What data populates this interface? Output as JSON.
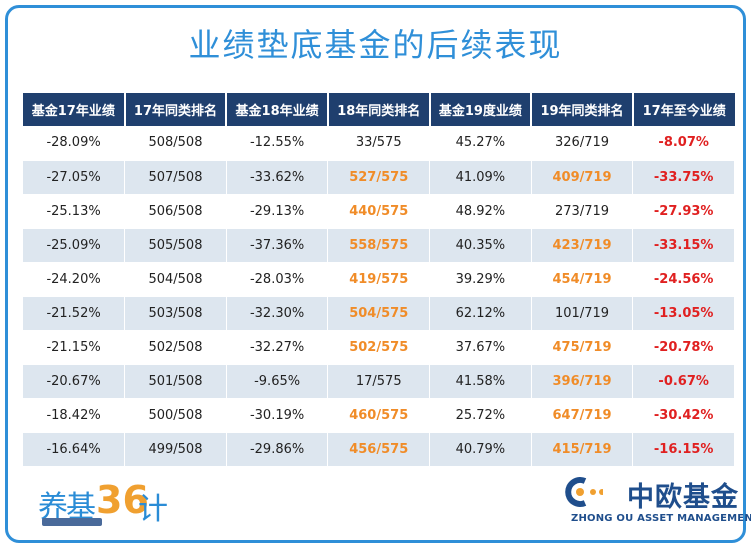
{
  "title": "业绩垫底基金的后续表现",
  "columns": [
    "基金17年业绩",
    "17年同类排名",
    "基金18年业绩",
    "18年同类排名",
    "基金19度业绩",
    "19年同类排名",
    "17年至今业绩"
  ],
  "rows": [
    [
      "-28.09%",
      "508/508",
      "-12.55%",
      "33/575",
      "45.27%",
      "326/719",
      "-8.07%"
    ],
    [
      "-27.05%",
      "507/508",
      "-33.62%",
      "527/575",
      "41.09%",
      "409/719",
      "-33.75%"
    ],
    [
      "-25.13%",
      "506/508",
      "-29.13%",
      "440/575",
      "48.92%",
      "273/719",
      "-27.93%"
    ],
    [
      "-25.09%",
      "505/508",
      "-37.36%",
      "558/575",
      "40.35%",
      "423/719",
      "-33.15%"
    ],
    [
      "-24.20%",
      "504/508",
      "-28.03%",
      "419/575",
      "39.29%",
      "454/719",
      "-24.56%"
    ],
    [
      "-21.52%",
      "503/508",
      "-32.30%",
      "504/575",
      "62.12%",
      "101/719",
      "-13.05%"
    ],
    [
      "-21.15%",
      "502/508",
      "-32.27%",
      "502/575",
      "37.67%",
      "475/719",
      "-20.78%"
    ],
    [
      "-20.67%",
      "501/508",
      "-9.65%",
      "17/575",
      "41.58%",
      "396/719",
      "-0.67%"
    ],
    [
      "-18.42%",
      "500/508",
      "-30.19%",
      "460/575",
      "25.72%",
      "647/719",
      "-30.42%"
    ],
    [
      "-16.64%",
      "499/508",
      "-29.86%",
      "456/575",
      "40.79%",
      "415/719",
      "-16.15%"
    ]
  ],
  "highlight": {
    "rank18_bad": [
      false,
      true,
      true,
      true,
      true,
      true,
      true,
      false,
      true,
      true
    ],
    "rank19_bad": [
      false,
      true,
      false,
      true,
      true,
      false,
      true,
      true,
      true,
      true
    ]
  },
  "logo_left": {
    "glyphs": "养基",
    "num": "36",
    "tail": "计"
  },
  "brand": {
    "name_cn": "中欧基金",
    "name_en": "ZHONG OU ASSET MANAGEMENT"
  },
  "colors": {
    "accent": "#2f8fd8",
    "header_bg": "#1f3f6e",
    "warn": "#f08c28",
    "loss": "#e02020",
    "brand": "#1f4e8c"
  }
}
